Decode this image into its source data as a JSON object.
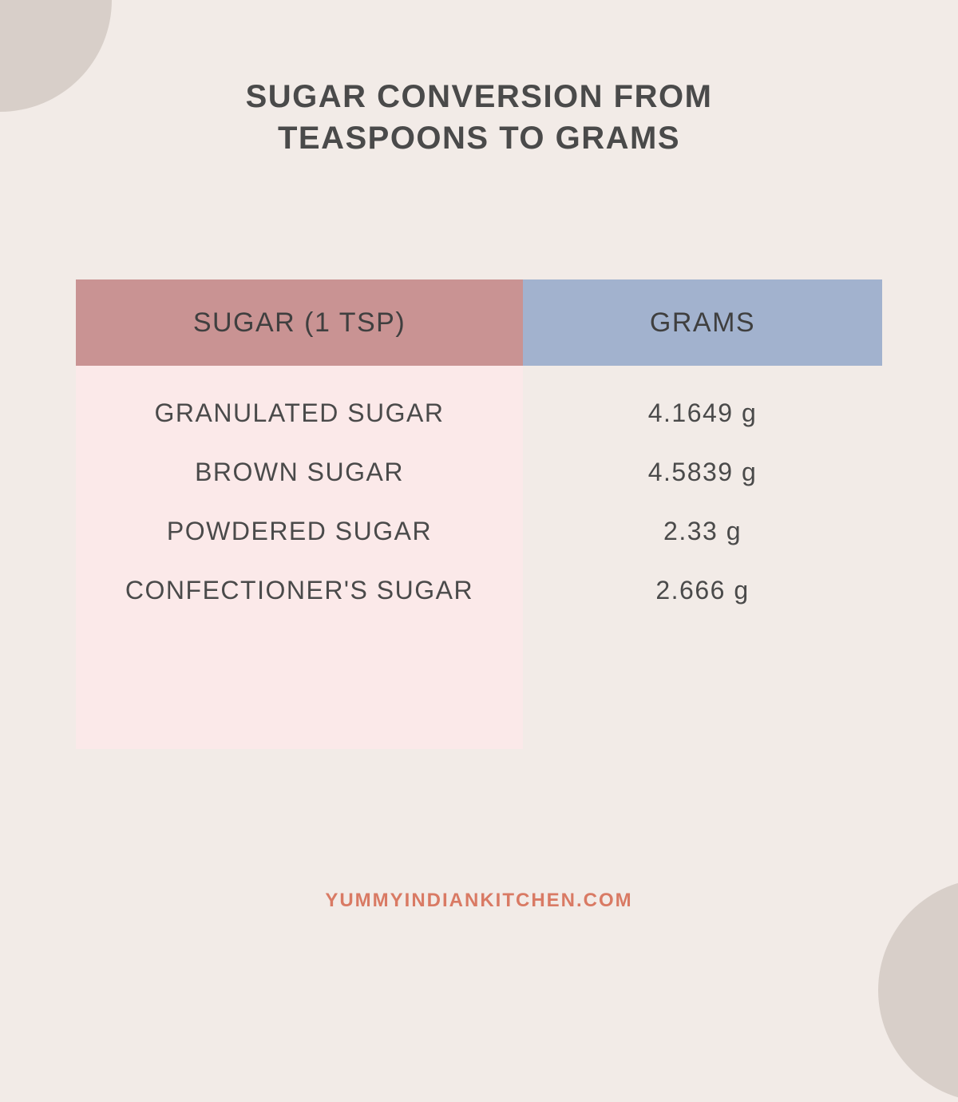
{
  "title_line1": "SUGAR CONVERSION FROM",
  "title_line2": "TEASPOONS TO GRAMS",
  "table": {
    "header_left": "SUGAR (1 TSP)",
    "header_right": "GRAMS",
    "header_left_bg": "#c99393",
    "header_right_bg": "#a2b2ce",
    "body_left_bg": "#fbe9e9",
    "rows": [
      {
        "label": "GRANULATED SUGAR",
        "value": "4.1649 g"
      },
      {
        "label": "BROWN SUGAR",
        "value": "4.5839 g"
      },
      {
        "label": "POWDERED SUGAR",
        "value": "2.33 g"
      },
      {
        "label": "CONFECTIONER'S SUGAR",
        "value": "2.666 g"
      }
    ]
  },
  "footer": "YUMMYINDIANKITCHEN.COM",
  "colors": {
    "background": "#f2ebe7",
    "corner": "#d8cfc9",
    "text": "#4a4a4a",
    "footer": "#d97a64"
  }
}
